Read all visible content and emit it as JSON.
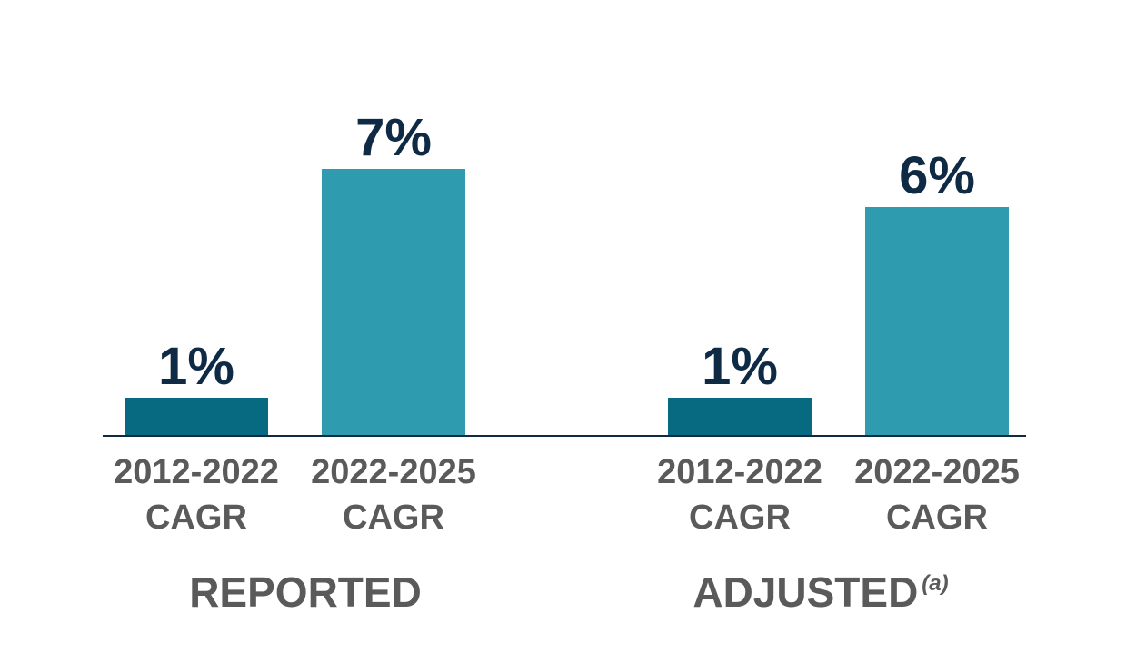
{
  "chart_data": {
    "type": "bar",
    "unit": "%",
    "ylim": [
      0,
      7
    ],
    "grid": false,
    "colors": {
      "bar_2012_2022": "#076A80",
      "bar_2022_2025": "#2E9BAF",
      "value_label": "#0F2A45",
      "axis_text": "#5A5A5A",
      "baseline": "#0F2A45"
    },
    "groups": [
      {
        "label": "REPORTED",
        "footnote": "",
        "bars": [
          {
            "category_line1": "2012-2022",
            "category_line2": "CAGR",
            "value": 1,
            "label": "1%",
            "color_key": "bar_2012_2022"
          },
          {
            "category_line1": "2022-2025",
            "category_line2": "CAGR",
            "value": 7,
            "label": "7%",
            "color_key": "bar_2022_2025"
          }
        ]
      },
      {
        "label": "ADJUSTED",
        "footnote": "(a)",
        "bars": [
          {
            "category_line1": "2012-2022",
            "category_line2": "CAGR",
            "value": 1,
            "label": "1%",
            "color_key": "bar_2012_2022"
          },
          {
            "category_line1": "2022-2025",
            "category_line2": "CAGR",
            "value": 6,
            "label": "6%",
            "color_key": "bar_2022_2025"
          }
        ]
      }
    ]
  }
}
